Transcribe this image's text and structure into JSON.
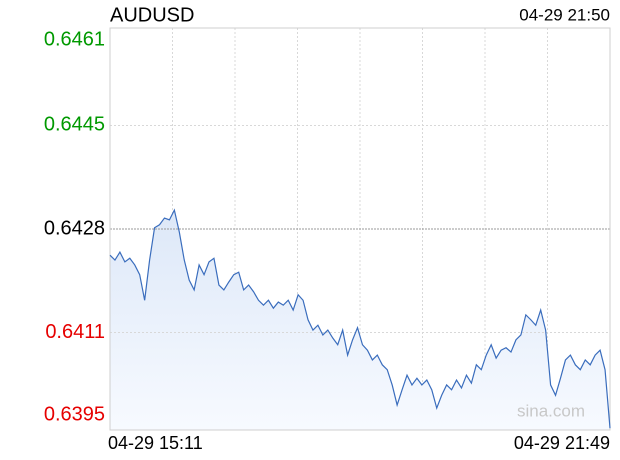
{
  "chart_data": {
    "type": "line",
    "title": "AUDUSD",
    "timestamp": "04-29 21:50",
    "x_labels": [
      "04-29 15:11",
      "04-29 21:49"
    ],
    "ylim": [
      0.6395,
      0.6461
    ],
    "yticks": [
      0.6395,
      0.6411,
      0.6428,
      0.6445,
      0.6461
    ],
    "prev_close": 0.6428,
    "up_color": "#009900",
    "down_color": "#e60000",
    "color": "#3a6dbd",
    "grid": true,
    "watermark": "sina.com",
    "values": [
      0.64237,
      0.64229,
      0.64242,
      0.64226,
      0.64232,
      0.64221,
      0.64205,
      0.64163,
      0.64229,
      0.64282,
      0.64287,
      0.64298,
      0.64295,
      0.64311,
      0.64275,
      0.64229,
      0.64196,
      0.6418,
      0.64221,
      0.64205,
      0.64226,
      0.64232,
      0.64188,
      0.6418,
      0.64193,
      0.64205,
      0.64209,
      0.6418,
      0.64188,
      0.64177,
      0.64163,
      0.64155,
      0.64163,
      0.6415,
      0.6416,
      0.64155,
      0.64163,
      0.64147,
      0.64172,
      0.64163,
      0.64131,
      0.64114,
      0.64122,
      0.64106,
      0.64114,
      0.64101,
      0.6409,
      0.64114,
      0.64073,
      0.64098,
      0.64118,
      0.6409,
      0.64081,
      0.64065,
      0.64073,
      0.64057,
      0.64049,
      0.64024,
      0.63991,
      0.64016,
      0.6404,
      0.64024,
      0.64035,
      0.64024,
      0.64032,
      0.64016,
      0.63986,
      0.64007,
      0.64024,
      0.64016,
      0.64032,
      0.64019,
      0.6404,
      0.64027,
      0.64057,
      0.64049,
      0.64073,
      0.6409,
      0.64068,
      0.64081,
      0.64085,
      0.64078,
      0.64098,
      0.64106,
      0.64139,
      0.64131,
      0.64122,
      0.64147,
      0.64114,
      0.64024,
      0.64007,
      0.64035,
      0.64065,
      0.64073,
      0.64057,
      0.64049,
      0.64065,
      0.64057,
      0.64073,
      0.64081,
      0.64049,
      0.63953
    ]
  }
}
